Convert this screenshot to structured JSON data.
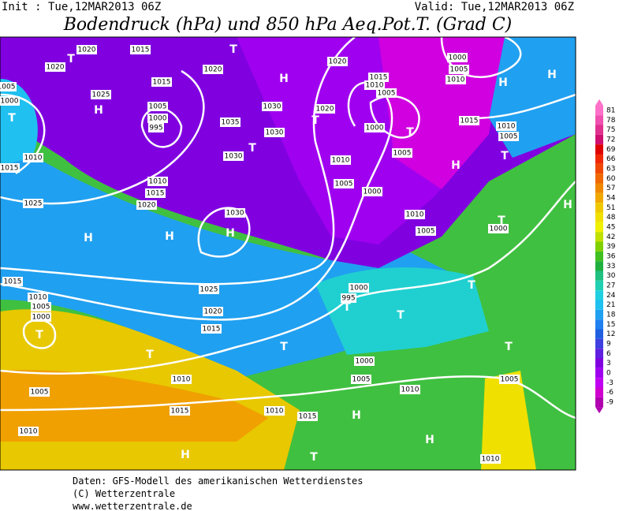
{
  "header": {
    "init": "Init : Tue,12MAR2013 06Z",
    "valid": "Valid: Tue,12MAR2013 06Z",
    "title": "Bodendruck (hPa) und 850 hPa Aeq.Pot.T. (Grad C)"
  },
  "colorbar": {
    "ticks": [
      81,
      78,
      75,
      72,
      69,
      66,
      63,
      60,
      57,
      54,
      51,
      48,
      45,
      42,
      39,
      36,
      33,
      30,
      27,
      24,
      21,
      18,
      15,
      12,
      9,
      6,
      3,
      0,
      -3,
      -6,
      -9
    ],
    "colors": [
      "#ff70c8",
      "#f050b0",
      "#e03090",
      "#d01070",
      "#e00000",
      "#f02800",
      "#f04800",
      "#f06800",
      "#f08800",
      "#f0a800",
      "#f0c800",
      "#f0e000",
      "#f0f000",
      "#c0e000",
      "#80d000",
      "#40c020",
      "#20b040",
      "#20c080",
      "#20d0b0",
      "#20d0e0",
      "#20c0f0",
      "#20a0f0",
      "#2080f0",
      "#2060e0",
      "#4040e0",
      "#6020e0",
      "#8000e0",
      "#a000f0",
      "#c000f0",
      "#d000d0",
      "#b000b0"
    ]
  },
  "map_labels": [
    "T",
    "1020",
    "1015",
    "1020",
    "1025",
    "H",
    "T",
    "1005",
    "1000",
    "1015",
    "1005",
    "1000",
    "995",
    "1020",
    "T",
    "H",
    "1030",
    "1035",
    "1030",
    "T",
    "1030",
    "1010",
    "1015",
    "1010",
    "1015",
    "1020",
    "1025",
    "1030",
    "H",
    "H",
    "H",
    "1020",
    "T",
    "1020",
    "1015",
    "1010",
    "1005",
    "1000",
    "T",
    "1005",
    "1010",
    "1005",
    "1000",
    "1000",
    "1005",
    "1010",
    "H",
    "H",
    "1015",
    "1010",
    "1005",
    "H",
    "T",
    "1010",
    "1005",
    "T",
    "1000",
    "H",
    "1015",
    "1010",
    "1005",
    "1000",
    "T",
    "1025",
    "1020",
    "1015",
    "T",
    "1010",
    "1005",
    "1015",
    "1010",
    "1010",
    "1000",
    "995",
    "T",
    "T",
    "T",
    "T",
    "1000",
    "1005",
    "1010",
    "1015",
    "H",
    "H",
    "T",
    "1005",
    "T",
    "H",
    "1010"
  ],
  "footer": [
    "Daten: GFS-Modell des amerikanischen Wetterdienstes",
    "(C) Wetterzentrale",
    "www.wetterzentrale.de"
  ]
}
